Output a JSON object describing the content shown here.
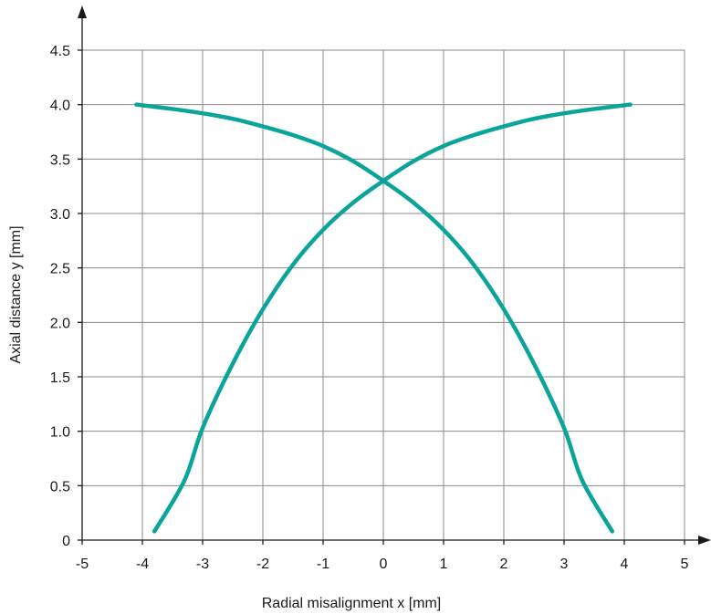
{
  "chart_data": {
    "type": "line",
    "xlabel": "Radial misalignment x [mm]",
    "ylabel": "Axial distance y [mm]",
    "xlim": [
      -5,
      5
    ],
    "ylim": [
      0,
      4.5
    ],
    "grid": true,
    "x_ticks": [
      "-5",
      "-4",
      "-3",
      "-2",
      "-1",
      "0",
      "1",
      "2",
      "3",
      "4",
      "5"
    ],
    "y_ticks": [
      "0",
      "0.5",
      "1.0",
      "1.5",
      "2.0",
      "2.5",
      "3.0",
      "3.5",
      "4.0",
      "4.5"
    ],
    "series_color": "#0aa49a",
    "series": [
      {
        "x": [
          -3.8,
          -3.3,
          -3.0,
          -2.5,
          -2.0,
          -1.5,
          -1.0,
          -0.5,
          0.0,
          0.5,
          1.0,
          1.5,
          2.0,
          2.5,
          3.0,
          3.5,
          4.1
        ],
        "y": [
          0.08,
          0.55,
          1.03,
          1.62,
          2.12,
          2.53,
          2.85,
          3.1,
          3.3,
          3.48,
          3.62,
          3.72,
          3.8,
          3.87,
          3.92,
          3.96,
          4.0
        ]
      },
      {
        "x": [
          -4.1,
          -3.5,
          -3.0,
          -2.5,
          -2.0,
          -1.5,
          -1.0,
          -0.5,
          0.0,
          0.5,
          1.0,
          1.5,
          2.0,
          2.5,
          3.0,
          3.3,
          3.8
        ],
        "y": [
          4.0,
          3.96,
          3.92,
          3.87,
          3.8,
          3.72,
          3.62,
          3.48,
          3.3,
          3.1,
          2.85,
          2.53,
          2.12,
          1.62,
          1.03,
          0.55,
          0.08
        ]
      }
    ]
  }
}
